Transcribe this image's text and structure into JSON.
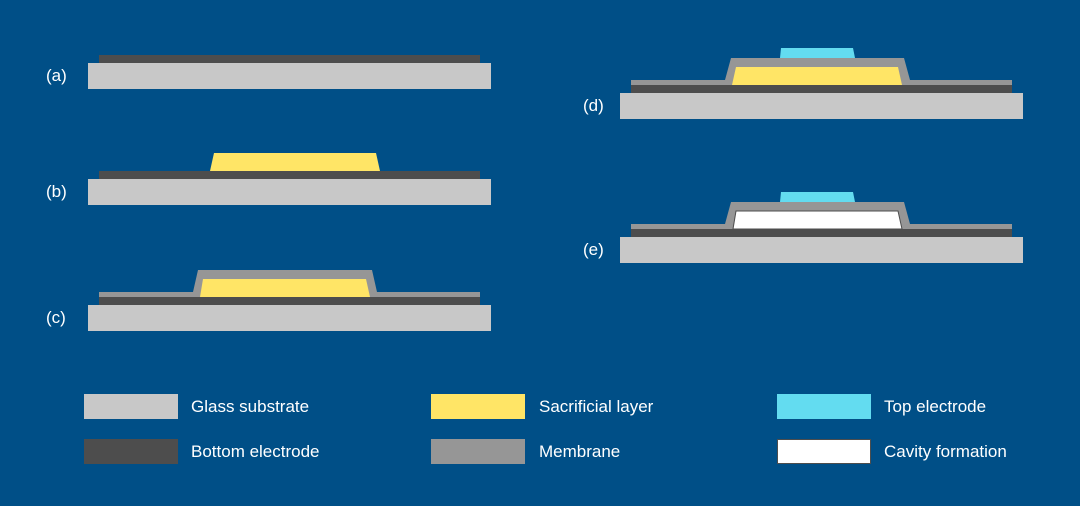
{
  "colors": {
    "background": "#004f87",
    "glass_substrate": "#c8c8c8",
    "bottom_electrode": "#4d4d4d",
    "sacrificial_layer": "#ffe566",
    "membrane": "#969696",
    "top_electrode": "#63dcf0",
    "cavity": "#ffffff"
  },
  "steps": [
    {
      "label": "(a)"
    },
    {
      "label": "(b)"
    },
    {
      "label": "(c)"
    },
    {
      "label": "(d)"
    },
    {
      "label": "(e)"
    }
  ],
  "legend": [
    {
      "label": "Glass substrate",
      "key": "glass_substrate"
    },
    {
      "label": "Sacrificial layer",
      "key": "sacrificial_layer"
    },
    {
      "label": "Top electrode",
      "key": "top_electrode"
    },
    {
      "label": "Bottom electrode",
      "key": "bottom_electrode"
    },
    {
      "label": "Membrane",
      "key": "membrane"
    },
    {
      "label": "Cavity formation",
      "key": "cavity"
    }
  ]
}
